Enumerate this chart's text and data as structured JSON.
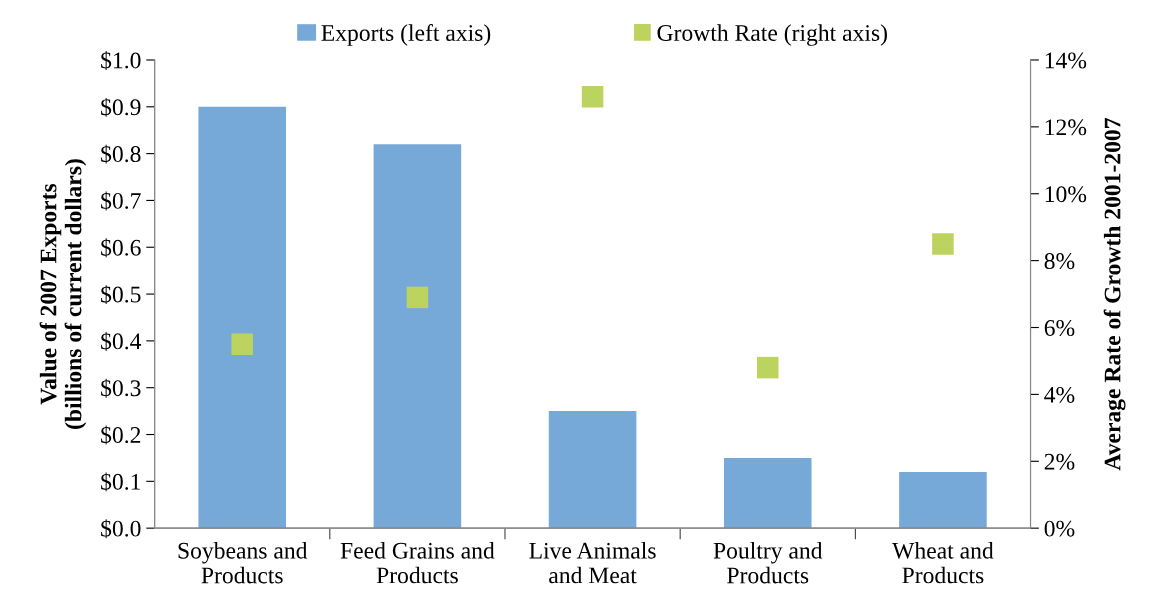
{
  "chart_data": {
    "type": "bar",
    "categories": [
      "Soybeans and\nProducts",
      "Feed Grains and\nProducts",
      "Live Animals\nand Meat",
      "Poultry and\nProducts",
      "Wheat and\nProducts"
    ],
    "series": [
      {
        "name": "Exports (left axis)",
        "color": "#77a9d8",
        "values": [
          0.9,
          0.82,
          0.25,
          0.15,
          0.12
        ]
      },
      {
        "name": "Growth Rate (right axis)",
        "type": "scatter",
        "axis": "y2",
        "marker": "square",
        "color": "#bcd35f",
        "values": [
          5.5,
          6.9,
          12.9,
          4.8,
          8.5
        ]
      }
    ],
    "ylabel": "Value of 2007 Exports\n(billions of current dollars)",
    "y2label": "Average Rate of Growth 2001-2007",
    "ylim": [
      0,
      1.0
    ],
    "yticks": [
      {
        "value": 0,
        "label": "$0.0"
      },
      {
        "value": 0.1,
        "label": "$0.1"
      },
      {
        "value": 0.2,
        "label": "$0.2"
      },
      {
        "value": 0.3,
        "label": "$0.3"
      },
      {
        "value": 0.4,
        "label": "$0.4"
      },
      {
        "value": 0.5,
        "label": "$0.5"
      },
      {
        "value": 0.6,
        "label": "$0.6"
      },
      {
        "value": 0.7,
        "label": "$0.7"
      },
      {
        "value": 0.8,
        "label": "$0.8"
      },
      {
        "value": 0.9,
        "label": "$0.9"
      },
      {
        "value": 1.0,
        "label": "$1.0"
      }
    ],
    "y2lim": [
      0,
      14
    ],
    "y2ticks": [
      {
        "value": 0,
        "label": "0%"
      },
      {
        "value": 2,
        "label": "2%"
      },
      {
        "value": 4,
        "label": "4%"
      },
      {
        "value": 6,
        "label": "6%"
      },
      {
        "value": 8,
        "label": "8%"
      },
      {
        "value": 10,
        "label": "10%"
      },
      {
        "value": 12,
        "label": "12%"
      },
      {
        "value": 14,
        "label": "14%"
      }
    ],
    "grid": false,
    "legend": "top"
  }
}
